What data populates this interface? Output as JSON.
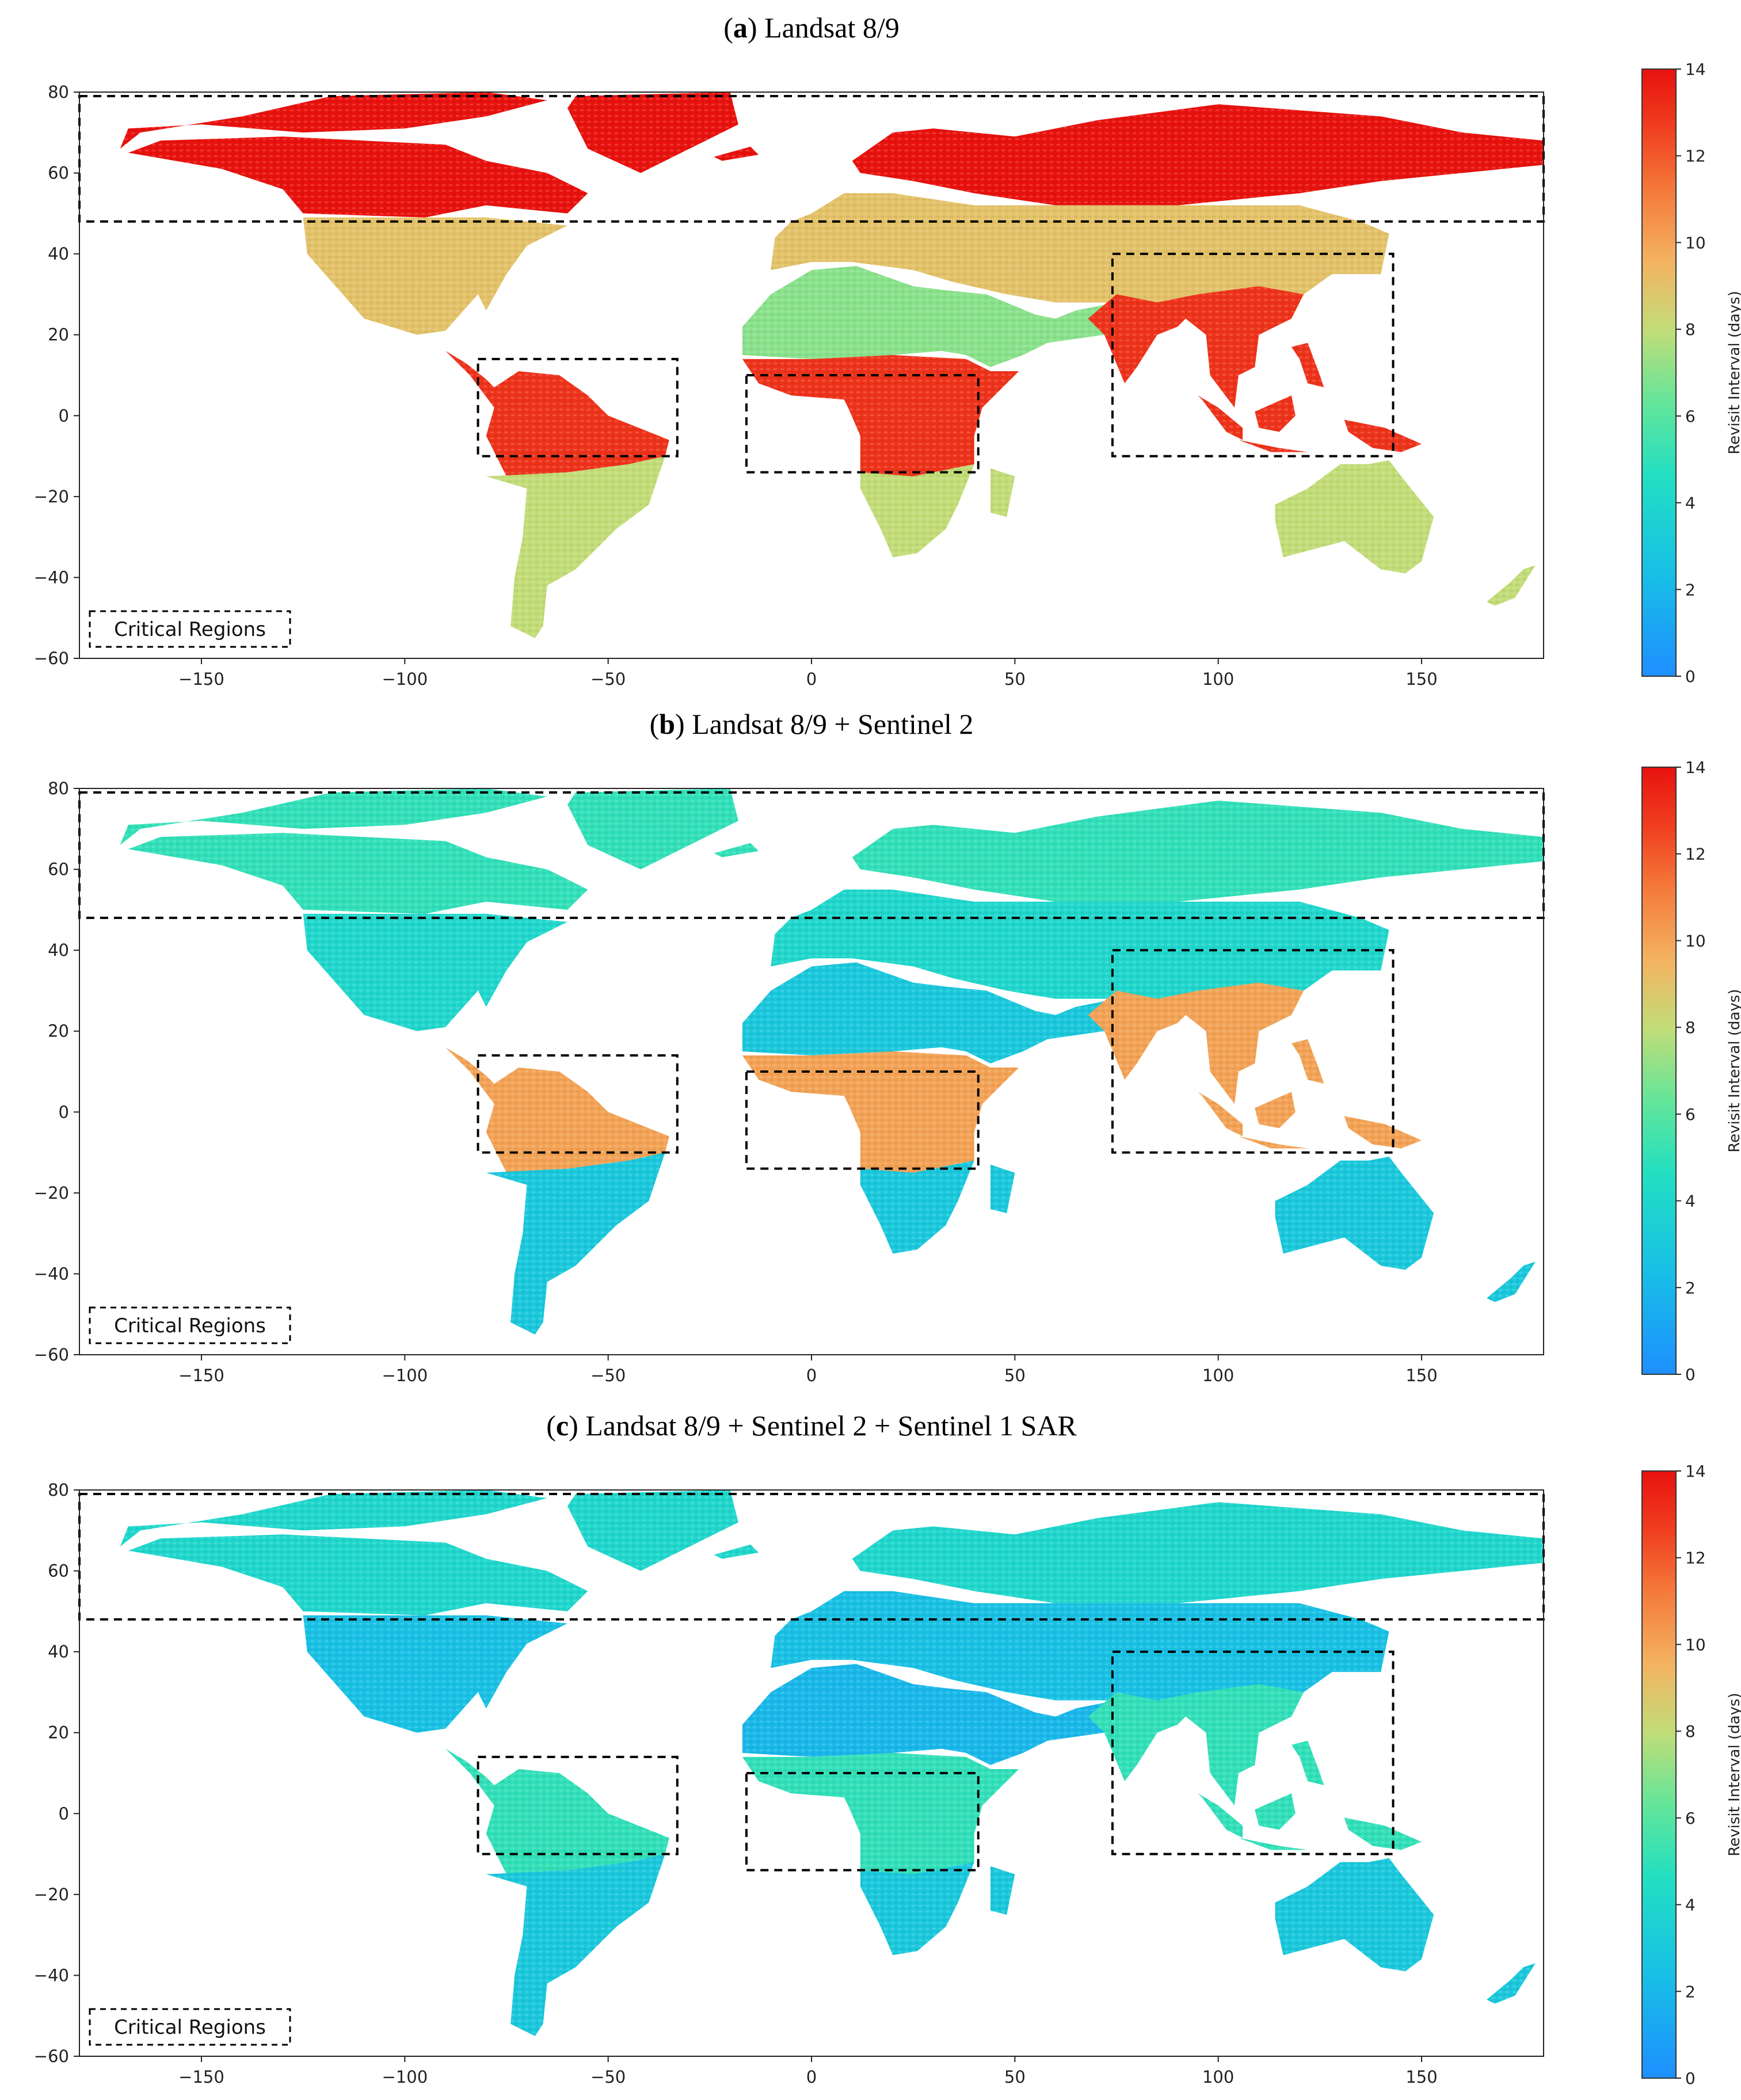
{
  "figure": {
    "colorbar_label": "Revisit Interval (days)",
    "legend_label": "Critical Regions"
  },
  "chart_data": [
    {
      "type": "heatmap",
      "panel_letter": "a",
      "title": "Landsat 8/9",
      "xlim": [
        -180,
        180
      ],
      "ylim": [
        -60,
        80
      ],
      "xticks": [
        -150,
        -100,
        -50,
        0,
        50,
        100,
        150
      ],
      "yticks": [
        -60,
        -40,
        -20,
        0,
        20,
        40,
        60,
        80
      ],
      "colorbar": {
        "range": [
          0,
          14
        ],
        "ticks": [
          0,
          2,
          4,
          6,
          8,
          10,
          12,
          14
        ],
        "label": "Revisit Interval (days)"
      },
      "regions": [
        {
          "lon": [
            -180,
            180
          ],
          "lat": [
            48,
            79
          ]
        },
        {
          "lon": [
            -82,
            -33
          ],
          "lat": [
            -10,
            14
          ]
        },
        {
          "lon": [
            -16,
            41
          ],
          "lat": [
            -14,
            10
          ]
        },
        {
          "lon": [
            74,
            143
          ],
          "lat": [
            -10,
            40
          ]
        }
      ],
      "legend": [
        "Critical Regions"
      ],
      "typical_revisit_days": {
        "north_high_latitudes": 14,
        "mid_latitudes": 9,
        "tropics": 13,
        "deserts": 7,
        "southern_continents": 8
      }
    },
    {
      "type": "heatmap",
      "panel_letter": "b",
      "title": "Landsat 8/9 + Sentinel 2",
      "xlim": [
        -180,
        180
      ],
      "ylim": [
        -60,
        80
      ],
      "xticks": [
        -150,
        -100,
        -50,
        0,
        50,
        100,
        150
      ],
      "yticks": [
        -60,
        -40,
        -20,
        0,
        20,
        40,
        60,
        80
      ],
      "colorbar": {
        "range": [
          0,
          14
        ],
        "ticks": [
          0,
          2,
          4,
          6,
          8,
          10,
          12,
          14
        ],
        "label": "Revisit Interval (days)"
      },
      "regions": [
        {
          "lon": [
            -180,
            180
          ],
          "lat": [
            48,
            79
          ]
        },
        {
          "lon": [
            -82,
            -33
          ],
          "lat": [
            -10,
            14
          ]
        },
        {
          "lon": [
            -16,
            41
          ],
          "lat": [
            -14,
            10
          ]
        },
        {
          "lon": [
            74,
            143
          ],
          "lat": [
            -10,
            40
          ]
        }
      ],
      "legend": [
        "Critical Regions"
      ],
      "typical_revisit_days": {
        "north_high_latitudes": 5,
        "mid_latitudes": 4,
        "tropics": 10,
        "deserts": 3,
        "southern_continents": 3
      }
    },
    {
      "type": "heatmap",
      "panel_letter": "c",
      "title": "Landsat 8/9 + Sentinel 2 + Sentinel 1 SAR",
      "xlim": [
        -180,
        180
      ],
      "ylim": [
        -60,
        80
      ],
      "xticks": [
        -150,
        -100,
        -50,
        0,
        50,
        100,
        150
      ],
      "yticks": [
        -60,
        -40,
        -20,
        0,
        20,
        40,
        60,
        80
      ],
      "colorbar": {
        "range": [
          0,
          14
        ],
        "ticks": [
          0,
          2,
          4,
          6,
          8,
          10,
          12,
          14
        ],
        "label": "Revisit Interval (days)"
      },
      "regions": [
        {
          "lon": [
            -180,
            180
          ],
          "lat": [
            48,
            79
          ]
        },
        {
          "lon": [
            -82,
            -33
          ],
          "lat": [
            -10,
            14
          ]
        },
        {
          "lon": [
            -16,
            41
          ],
          "lat": [
            -14,
            10
          ]
        },
        {
          "lon": [
            74,
            143
          ],
          "lat": [
            -10,
            40
          ]
        }
      ],
      "legend": [
        "Critical Regions"
      ],
      "typical_revisit_days": {
        "north_high_latitudes": 4,
        "mid_latitudes": 2.5,
        "tropics": 5,
        "deserts": 2,
        "southern_continents": 3
      }
    }
  ]
}
